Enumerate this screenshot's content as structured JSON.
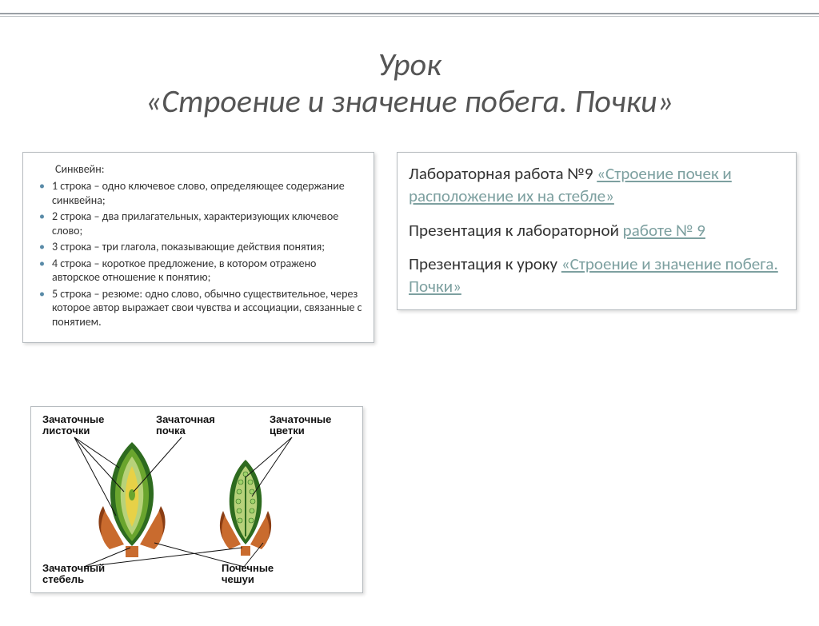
{
  "colors": {
    "title": "#555555",
    "bullet": "#5a8ba8",
    "link": "#7da0a0",
    "box_border": "#b7bcc0",
    "text": "#333333",
    "rule1": "#9aa0a6",
    "rule2": "#c0c4c8"
  },
  "title": "Урок\n«Строение и значение побега. Почки»",
  "left": {
    "heading": "Синквейн:",
    "items": [
      "1 строка – одно ключевое слово, определяющее содержание синквейна;",
      "2 строка – два прилагательных, характеризующих ключевое слово;",
      "3 строка – три глагола, показывающие действия понятия;",
      "4 строка – короткое предложение, в котором отражено авторское отношение к понятию;",
      "5 строка – резюме: одно слово, обычно существительное, через которое автор выражает свои чувства и ассоциации, связанные с понятием."
    ]
  },
  "right": {
    "p1_text": "Лабораторная работа №9 ",
    "p1_link": "«Строение почек и расположение их на стебле»",
    "p2_text": "Презентация к лабораторной ",
    "p2_link": "работе № 9",
    "p3_text": "Презентация к уроку ",
    "p3_link": "«Строение и значение побега. Почки»"
  },
  "diagram": {
    "labels": {
      "top_left": "Зачаточные\nлисточки",
      "top_center": "Зачаточная\nпочка",
      "top_right": "Зачаточные\nцветки",
      "bottom_left": "Зачаточный\nстебель",
      "bottom_right": "Почечные\nчешуи"
    },
    "colors": {
      "outer_scale": "#c96b2e",
      "outer_scale_dark": "#8a3d14",
      "leaf_outer": "#2e6b1f",
      "leaf_mid": "#6aa52e",
      "leaf_inner": "#b7d27a",
      "core": "#e7d147",
      "flower": "#9fd36a",
      "line": "#111111"
    }
  }
}
